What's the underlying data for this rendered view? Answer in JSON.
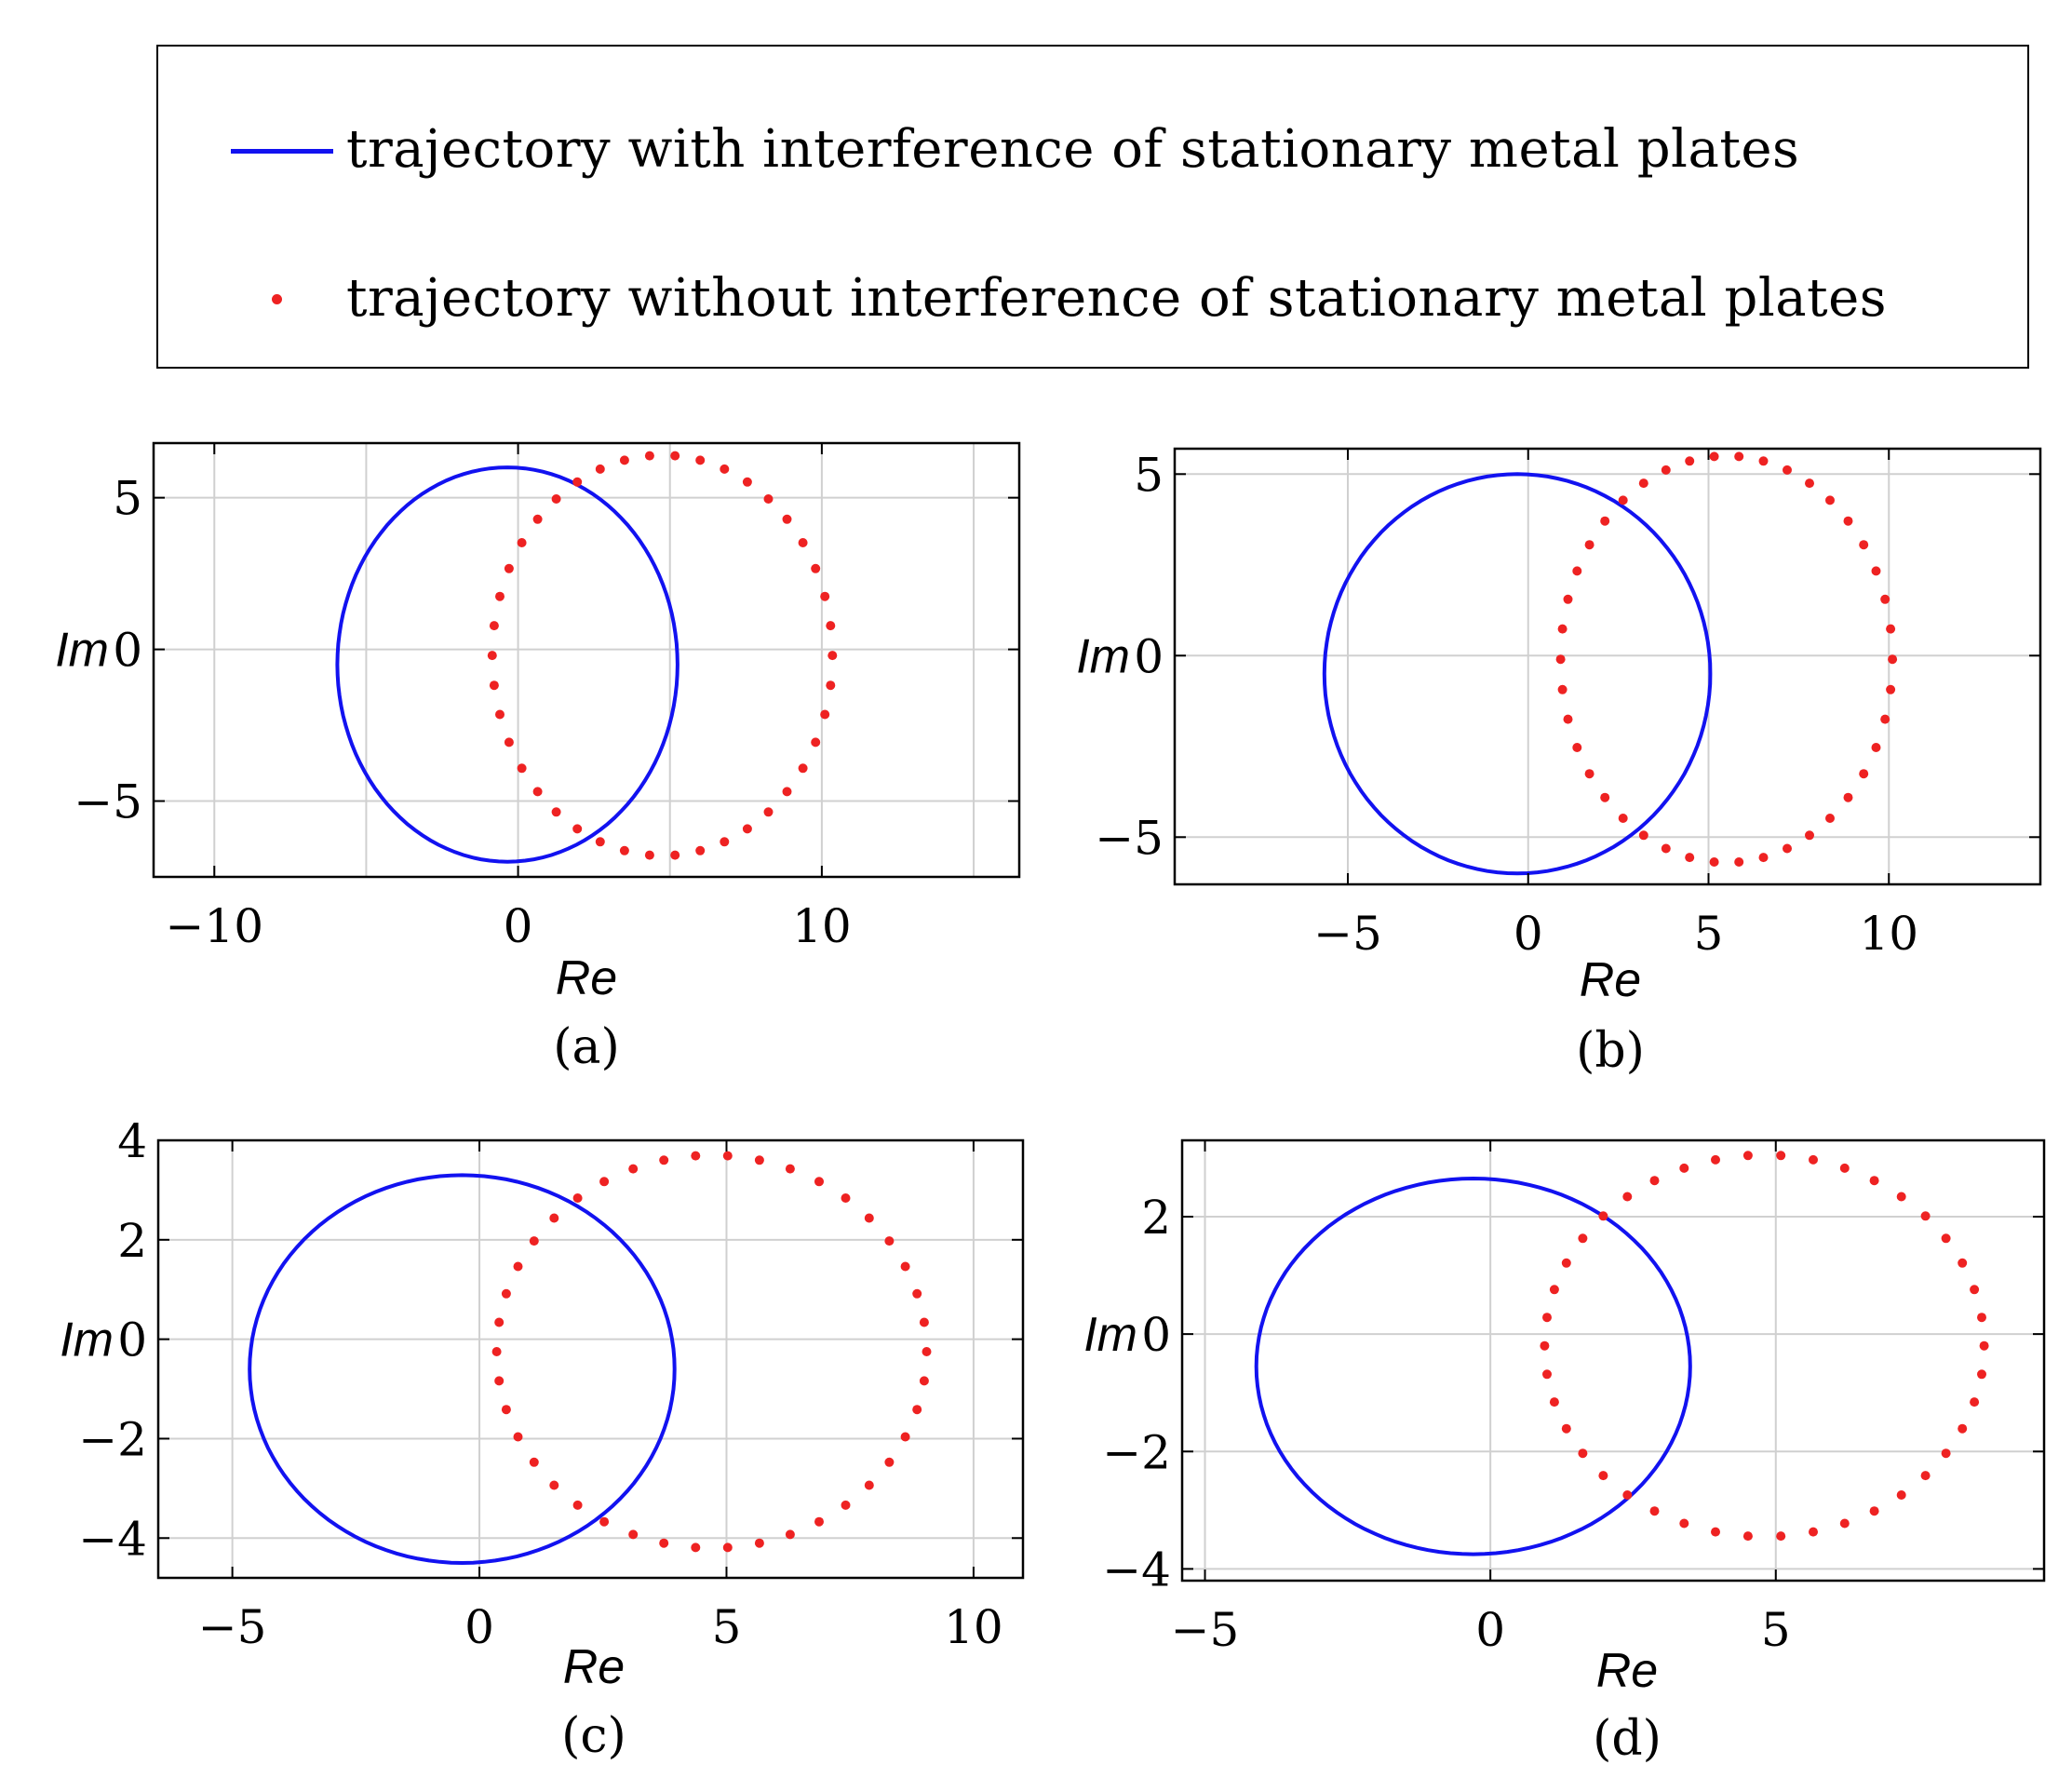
{
  "legend": {
    "entries": [
      {
        "label": "trajectory with interference of stationary metal plates",
        "marker": "line",
        "color": "#1212f0"
      },
      {
        "label": "trajectory without interference of stationary metal plates",
        "marker": "dot",
        "color": "#ee2222"
      }
    ]
  },
  "colors": {
    "with_interference": "#1212f0",
    "without_interference": "#ee2222",
    "grid": "#d0d0d0"
  },
  "chart_data": [
    {
      "type": "line",
      "caption": "(a)",
      "xlabel": "Re",
      "ylabel": "Im",
      "xlim": [
        -12,
        16.5
      ],
      "ylim": [
        -7.5,
        6.8
      ],
      "xticks": [
        -10,
        0,
        10
      ],
      "yticks": [
        -5,
        0,
        5
      ],
      "grid_x": [
        -10,
        -5,
        0,
        5,
        10,
        15
      ],
      "grid_y": [
        -5,
        0,
        5
      ],
      "series": [
        {
          "name": "trajectory with interference of stationary metal plates",
          "style": "line",
          "center": [
            -0.35,
            -0.5
          ],
          "radius": [
            5.6,
            6.5
          ],
          "points": 120
        },
        {
          "name": "trajectory without interference of stationary metal plates",
          "style": "dots",
          "center": [
            4.75,
            -0.2
          ],
          "radius": [
            5.6,
            6.6
          ],
          "points": 42
        }
      ]
    },
    {
      "type": "line",
      "caption": "(b)",
      "xlabel": "Re",
      "ylabel": "Im",
      "xlim": [
        -9.8,
        14.2
      ],
      "ylim": [
        -6.3,
        5.7
      ],
      "xticks": [
        -5,
        0,
        5,
        10
      ],
      "yticks": [
        -5,
        0,
        5
      ],
      "grid_x": [
        -5,
        0,
        5,
        10
      ],
      "grid_y": [
        -5,
        0,
        5
      ],
      "series": [
        {
          "name": "trajectory with interference of stationary metal plates",
          "style": "line",
          "center": [
            -0.3,
            -0.5
          ],
          "radius": [
            5.35,
            5.5
          ],
          "points": 120
        },
        {
          "name": "trajectory without interference of stationary metal plates",
          "style": "dots",
          "center": [
            5.5,
            -0.1
          ],
          "radius": [
            4.6,
            5.6
          ],
          "points": 42
        }
      ]
    },
    {
      "type": "line",
      "caption": "(c)",
      "xlabel": "Re",
      "ylabel": "Im",
      "xlim": [
        -6.5,
        11
      ],
      "ylim": [
        -4.8,
        4
      ],
      "xticks": [
        -5,
        0,
        5,
        10
      ],
      "yticks": [
        -4,
        -2,
        0,
        2,
        4
      ],
      "grid_x": [
        -5,
        0,
        5,
        10
      ],
      "grid_y": [
        -4,
        -2,
        0,
        2,
        4
      ],
      "series": [
        {
          "name": "trajectory with interference of stationary metal plates",
          "style": "line",
          "center": [
            -0.35,
            -0.6
          ],
          "radius": [
            4.3,
            3.9
          ],
          "points": 120
        },
        {
          "name": "trajectory without interference of stationary metal plates",
          "style": "dots",
          "center": [
            4.7,
            -0.25
          ],
          "radius": [
            4.35,
            3.95
          ],
          "points": 42
        }
      ]
    },
    {
      "type": "line",
      "caption": "(d)",
      "xlabel": "Re",
      "ylabel": "Im",
      "xlim": [
        -5.4,
        9.7
      ],
      "ylim": [
        -4.2,
        3.3
      ],
      "xticks": [
        -5,
        0,
        5
      ],
      "yticks": [
        -4,
        -2,
        0,
        2
      ],
      "grid_x": [
        -5,
        0,
        5
      ],
      "grid_y": [
        -4,
        -2,
        0,
        2
      ],
      "series": [
        {
          "name": "trajectory with interference of stationary metal plates",
          "style": "line",
          "center": [
            -0.3,
            -0.55
          ],
          "radius": [
            3.8,
            3.2
          ],
          "points": 120
        },
        {
          "name": "trajectory without interference of stationary metal plates",
          "style": "dots",
          "center": [
            4.8,
            -0.2
          ],
          "radius": [
            3.85,
            3.25
          ],
          "points": 42
        }
      ]
    }
  ]
}
